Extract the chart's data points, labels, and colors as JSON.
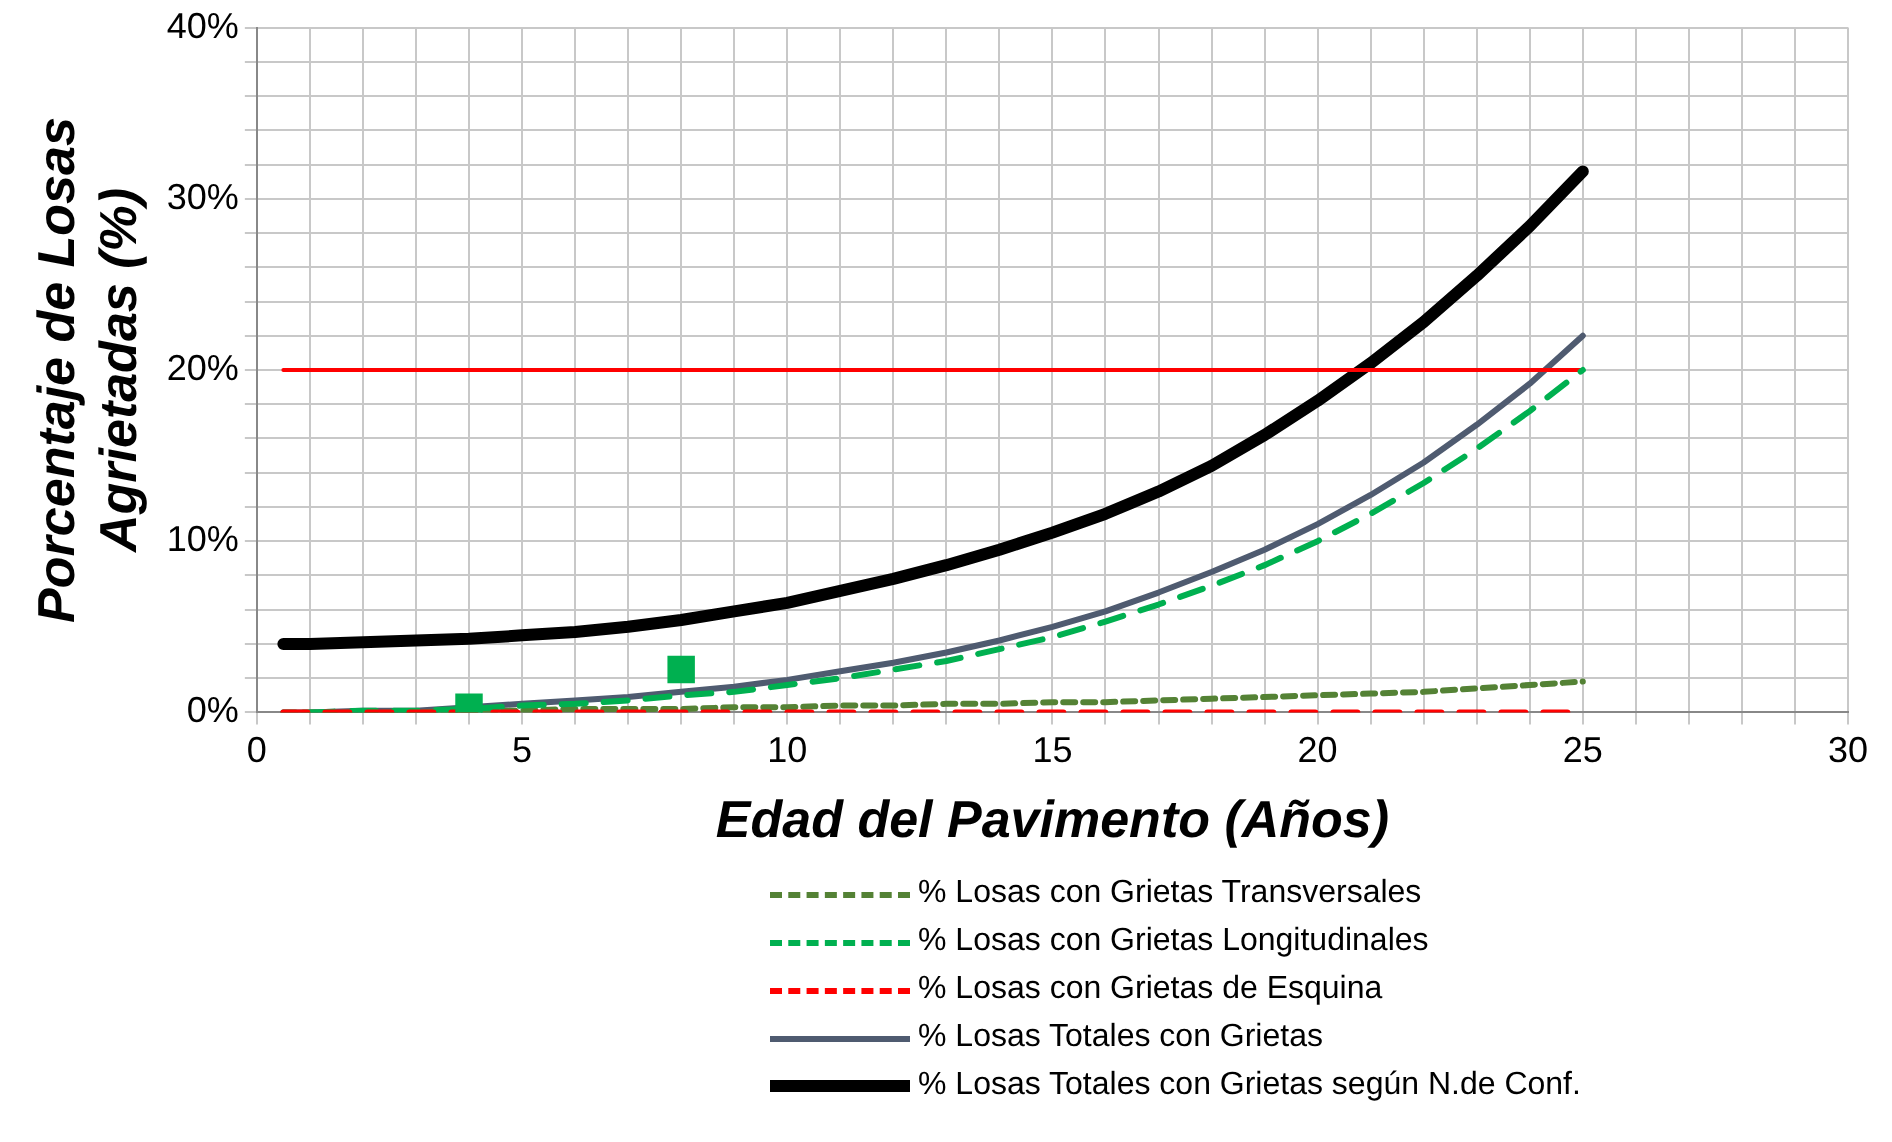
{
  "chart_data": {
    "type": "line",
    "xlabel": "Edad del Pavimento (Años)",
    "ylabel": "Porcentaje de Losas\nAgrietadas (%)",
    "x": [
      0.5,
      1,
      2,
      3,
      4,
      5,
      6,
      7,
      8,
      9,
      10,
      11,
      12,
      13,
      14,
      15,
      16,
      17,
      18,
      19,
      20,
      21,
      22,
      23,
      24,
      25
    ],
    "series": [
      {
        "name": "% Losas con Grietas Transversales",
        "color": "#548235",
        "line_style": "dotted",
        "values": [
          0,
          0,
          0,
          0,
          0.1,
          0.1,
          0.2,
          0.2,
          0.2,
          0.3,
          0.3,
          0.4,
          0.4,
          0.5,
          0.5,
          0.6,
          0.6,
          0.7,
          0.8,
          0.9,
          1.0,
          1.1,
          1.2,
          1.4,
          1.6,
          1.8
        ]
      },
      {
        "name": "% Losas con Grietas Longitudinales",
        "color": "#00b050",
        "line_style": "dashed",
        "values": [
          null,
          0,
          0.1,
          0.1,
          0.2,
          0.4,
          0.5,
          0.7,
          1.0,
          1.2,
          1.6,
          2.0,
          2.5,
          3.0,
          3.7,
          4.4,
          5.3,
          6.3,
          7.4,
          8.6,
          10.0,
          11.6,
          13.4,
          15.4,
          17.6,
          20.0
        ]
      },
      {
        "name": "% Losas con Grietas de Esquina",
        "color": "#ff0000",
        "line_style": "dashed",
        "values": [
          0,
          0,
          0,
          0,
          0,
          0,
          0,
          0,
          0,
          0,
          0,
          0,
          0,
          0,
          0,
          0,
          0,
          0,
          0,
          0,
          0,
          0,
          0,
          0,
          0,
          0
        ]
      },
      {
        "name": "% Losas Totales con Grietas",
        "color": "#4f5b70",
        "line_style": "solid",
        "values": [
          0,
          0,
          0.1,
          0.1,
          0.3,
          0.5,
          0.7,
          0.9,
          1.2,
          1.5,
          1.9,
          2.4,
          2.9,
          3.5,
          4.2,
          5.0,
          5.9,
          7.0,
          8.2,
          9.5,
          11.0,
          12.7,
          14.6,
          16.8,
          19.2,
          22.0
        ]
      },
      {
        "name": "% Losas Totales con Grietas según N.de Conf.",
        "color": "#000000",
        "line_style": "solid",
        "values": [
          4.0,
          4.0,
          4.1,
          4.2,
          4.3,
          4.5,
          4.7,
          5.0,
          5.4,
          5.9,
          6.4,
          7.1,
          7.8,
          8.6,
          9.5,
          10.5,
          11.6,
          12.9,
          14.4,
          16.2,
          18.2,
          20.4,
          22.8,
          25.5,
          28.4,
          31.6
        ]
      },
      {
        "color": "#ff0000",
        "line_style": "solid",
        "x": [
          0.5,
          25
        ],
        "values": [
          20,
          20
        ]
      },
      {
        "type": "scatter",
        "color": "#00b050",
        "marker": "square",
        "x": [
          4,
          8
        ],
        "values": [
          0.3,
          2.5
        ]
      }
    ],
    "marker": "none",
    "legend": "bottom",
    "grid": true,
    "xlim": [
      0,
      30
    ],
    "xticks": [
      0,
      {
        "value": 1,
        "label": null
      },
      {
        "value": 2,
        "label": null
      },
      {
        "value": 3,
        "label": null
      },
      {
        "value": 4,
        "label": null
      },
      5,
      {
        "value": 6,
        "label": null
      },
      {
        "value": 7,
        "label": null
      },
      {
        "value": 8,
        "label": null
      },
      {
        "value": 9,
        "label": null
      },
      10,
      {
        "value": 11,
        "label": null
      },
      {
        "value": 12,
        "label": null
      },
      {
        "value": 13,
        "label": null
      },
      {
        "value": 14,
        "label": null
      },
      15,
      {
        "value": 16,
        "label": null
      },
      {
        "value": 17,
        "label": null
      },
      {
        "value": 18,
        "label": null
      },
      {
        "value": 19,
        "label": null
      },
      20,
      {
        "value": 21,
        "label": null
      },
      {
        "value": 22,
        "label": null
      },
      {
        "value": 23,
        "label": null
      },
      {
        "value": 24,
        "label": null
      },
      25,
      {
        "value": 26,
        "label": null
      },
      {
        "value": 27,
        "label": null
      },
      {
        "value": 28,
        "label": null
      },
      {
        "value": 29,
        "label": null
      },
      30
    ],
    "ylim": [
      0,
      40
    ],
    "yticks": [
      {
        "value": 0,
        "label": "0%"
      },
      {
        "value": 2,
        "label": null
      },
      {
        "value": 4,
        "label": null
      },
      {
        "value": 6,
        "label": null
      },
      {
        "value": 8,
        "label": null
      },
      {
        "value": 10,
        "label": "10%"
      },
      {
        "value": 12,
        "label": null
      },
      {
        "value": 14,
        "label": null
      },
      {
        "value": 16,
        "label": null
      },
      {
        "value": 18,
        "label": null
      },
      {
        "value": 20,
        "label": "20%"
      },
      {
        "value": 22,
        "label": null
      },
      {
        "value": 24,
        "label": null
      },
      {
        "value": 26,
        "label": null
      },
      {
        "value": 28,
        "label": null
      },
      {
        "value": 30,
        "label": "30%"
      },
      {
        "value": 32,
        "label": null
      },
      {
        "value": 34,
        "label": null
      },
      {
        "value": 36,
        "label": null
      },
      {
        "value": 38,
        "label": null
      },
      {
        "value": 40,
        "label": "40%"
      }
    ]
  }
}
